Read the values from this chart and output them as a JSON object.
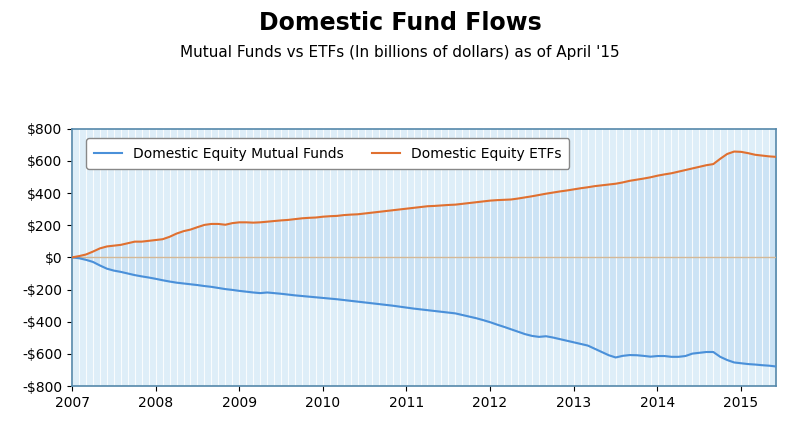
{
  "title": "Domestic Fund Flows",
  "subtitle": "Mutual Funds vs ETFs (In billions of dollars) as of April '15",
  "ylim": [
    -800,
    800
  ],
  "yticks": [
    -800,
    -600,
    -400,
    -200,
    0,
    200,
    400,
    600,
    800
  ],
  "ytick_labels": [
    "-$800",
    "-$600",
    "-$400",
    "-$200",
    "$0",
    "$200",
    "$400",
    "$600",
    "$800"
  ],
  "xlim_start": 2007.0,
  "xlim_end": 2015.42,
  "xtick_years": [
    2007,
    2008,
    2009,
    2010,
    2011,
    2012,
    2013,
    2014,
    2015
  ],
  "legend_labels": [
    "Domestic Equity Mutual Funds",
    "Domestic Equity ETFs"
  ],
  "mf_color": "#4a90d9",
  "etf_color": "#e07030",
  "fill_color_top": "#cce3f5",
  "fill_color_bot": "#cce3f5",
  "bg_color": "#ffffff",
  "plot_bg_color": "#deeef8",
  "zero_line_color": "#d4b896",
  "border_color": "#5588aa",
  "title_fontsize": 17,
  "subtitle_fontsize": 11,
  "tick_fontsize": 10,
  "legend_fontsize": 10,
  "n_points": 102,
  "mf_values": [
    0,
    -5,
    -15,
    -28,
    -50,
    -70,
    -82,
    -90,
    -100,
    -110,
    -118,
    -125,
    -133,
    -142,
    -150,
    -157,
    -162,
    -167,
    -172,
    -178,
    -183,
    -190,
    -197,
    -202,
    -208,
    -213,
    -218,
    -222,
    -218,
    -222,
    -226,
    -231,
    -236,
    -240,
    -244,
    -248,
    -252,
    -256,
    -260,
    -265,
    -270,
    -275,
    -280,
    -285,
    -290,
    -295,
    -300,
    -306,
    -312,
    -318,
    -323,
    -328,
    -333,
    -338,
    -343,
    -348,
    -358,
    -368,
    -378,
    -390,
    -403,
    -418,
    -432,
    -447,
    -462,
    -477,
    -488,
    -494,
    -490,
    -498,
    -508,
    -518,
    -528,
    -538,
    -548,
    -568,
    -588,
    -608,
    -622,
    -612,
    -607,
    -608,
    -612,
    -617,
    -613,
    -613,
    -618,
    -618,
    -613,
    -598,
    -593,
    -588,
    -588,
    -618,
    -638,
    -653,
    -658,
    -663,
    -666,
    -670,
    -673,
    -678
  ],
  "etf_values": [
    0,
    8,
    18,
    36,
    56,
    68,
    73,
    78,
    88,
    98,
    98,
    103,
    108,
    113,
    128,
    148,
    163,
    173,
    188,
    202,
    208,
    208,
    203,
    213,
    218,
    218,
    216,
    218,
    222,
    226,
    230,
    233,
    238,
    243,
    246,
    248,
    253,
    256,
    258,
    263,
    266,
    268,
    273,
    278,
    283,
    288,
    293,
    298,
    303,
    308,
    313,
    318,
    320,
    323,
    326,
    328,
    333,
    338,
    343,
    348,
    353,
    356,
    358,
    360,
    366,
    373,
    380,
    388,
    396,
    403,
    410,
    416,
    423,
    430,
    436,
    443,
    448,
    453,
    458,
    466,
    476,
    483,
    490,
    498,
    508,
    516,
    523,
    533,
    543,
    553,
    563,
    573,
    580,
    613,
    643,
    658,
    656,
    648,
    638,
    633,
    628,
    625
  ]
}
